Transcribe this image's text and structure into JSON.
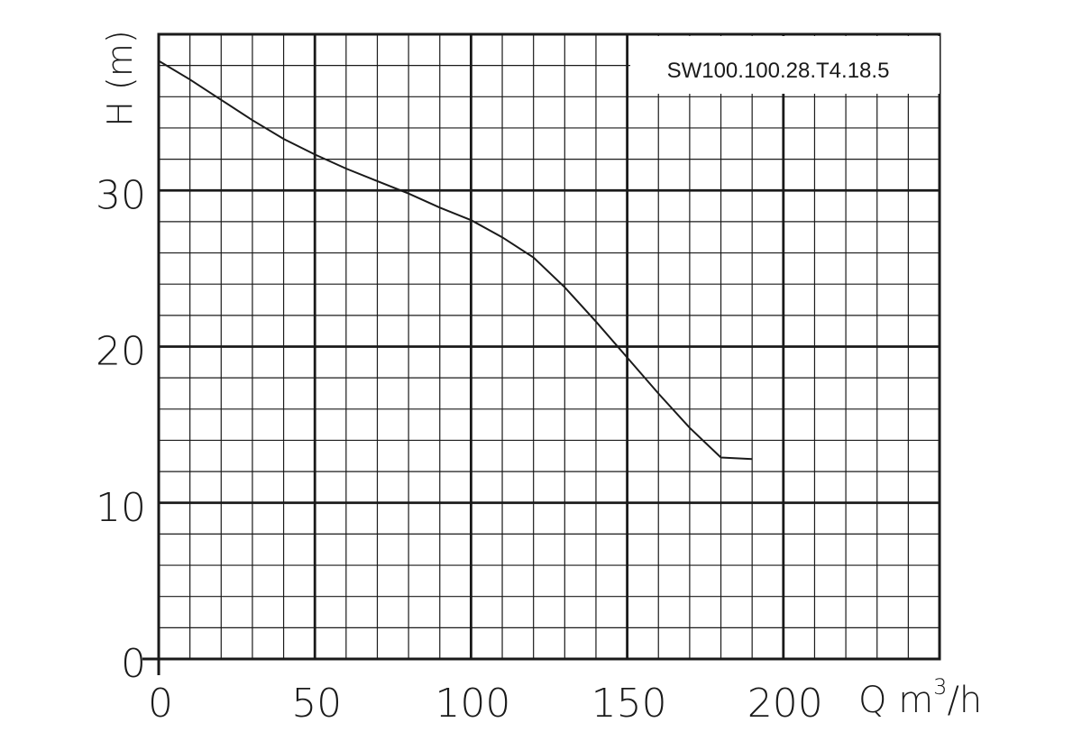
{
  "chart_data": {
    "type": "line",
    "title": "",
    "model_label": "SW100.100.28.T4.18.5",
    "xlabel": "Q m³/h",
    "xlabel_base": "Q m",
    "xlabel_sup": "3",
    "xlabel_tail": "/h",
    "ylabel": "H (m)",
    "xlim": [
      0,
      250
    ],
    "ylim": [
      0,
      40
    ],
    "x_ticks": [
      0,
      50,
      100,
      150,
      200
    ],
    "x_tick_labels": [
      "0",
      "50",
      "100",
      "150",
      "200"
    ],
    "y_ticks": [
      0,
      10,
      20,
      30
    ],
    "y_tick_labels": [
      "0",
      "10",
      "20",
      "30"
    ],
    "minor_grid_x_step": 10,
    "minor_grid_y_step": 2,
    "grid": true,
    "line_color": "#1a1a1a",
    "series": [
      {
        "x": [
          0,
          10,
          20,
          30,
          40,
          50,
          60,
          70,
          80,
          90,
          100,
          110,
          120,
          130,
          140,
          150,
          160,
          170,
          180,
          190
        ],
        "y": [
          38.3,
          37.1,
          35.8,
          34.5,
          33.3,
          32.3,
          31.4,
          30.6,
          29.8,
          28.9,
          28.1,
          27.0,
          25.7,
          23.8,
          21.6,
          19.3,
          17.0,
          14.8,
          12.9,
          12.8
        ]
      }
    ]
  }
}
